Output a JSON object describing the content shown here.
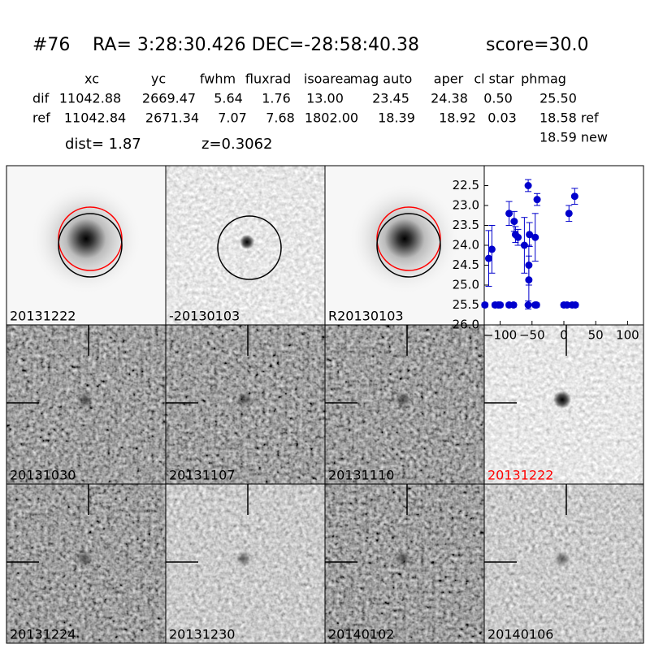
{
  "header": {
    "id": "#76",
    "coords": "RA= 3:28:30.426 DEC=-28:58:40.38",
    "score": "score=30.0"
  },
  "table": {
    "columns": [
      "xc",
      "yc",
      "fwhm",
      "fluxrad",
      "isoarea",
      "mag auto",
      "aper",
      "cl star",
      "phmag"
    ],
    "rows": [
      [
        "dif",
        "11042.88",
        "2669.47",
        "5.64",
        "1.76",
        "13.00",
        "23.45",
        "24.38",
        "0.50",
        "25.50"
      ],
      [
        "ref",
        "11042.84",
        "2671.34",
        "7.07",
        "7.68",
        "1802.00",
        "18.39",
        "18.92",
        "0.03",
        "18.58 ref"
      ]
    ],
    "new_phmag": "18.59 new",
    "dist": "dist=  1.87",
    "z": "z=0.3062"
  },
  "panels": [
    {
      "label": "20131222",
      "label_color": "#000000"
    },
    {
      "label": "-20130103",
      "label_color": "#000000"
    },
    {
      "label": "R20130103",
      "label_color": "#000000"
    },
    {
      "label": "20131030",
      "label_color": "#000000"
    },
    {
      "label": "20131107",
      "label_color": "#000000"
    },
    {
      "label": "20131110",
      "label_color": "#000000"
    },
    {
      "label": "20131222",
      "label_color": "#ff0000"
    },
    {
      "label": "20131224",
      "label_color": "#000000"
    },
    {
      "label": "20131230",
      "label_color": "#000000"
    },
    {
      "label": "20140102",
      "label_color": "#000000"
    },
    {
      "label": "20140106",
      "label_color": "#000000"
    }
  ],
  "chart_data": {
    "type": "scatter",
    "xlim": [
      -125,
      125
    ],
    "ylim": [
      26.0,
      22.0
    ],
    "xticks": [
      {
        "value": -100,
        "label": "−100"
      },
      {
        "value": -50,
        "label": "−50"
      },
      0,
      50,
      100
    ],
    "yticks": [
      22.5,
      {
        "value": 23.0,
        "label": "23.0"
      },
      23.5,
      {
        "value": 24.0,
        "label": "24.0"
      },
      24.5,
      {
        "value": 25.0,
        "label": "25.0"
      },
      25.5,
      {
        "value": 26.0,
        "label": "26.0"
      }
    ],
    "series": [
      {
        "color": "#0000cc",
        "x": [
          -118,
          -113,
          -124,
          -108,
          -103,
          -100,
          -86,
          -79,
          -86,
          -78,
          -76,
          -72,
          -62,
          -56,
          -55,
          -55,
          -54,
          -45,
          -42,
          -45,
          -43,
          -56,
          8,
          17,
          0,
          5,
          13,
          18
        ],
        "values": [
          24.33,
          24.1,
          25.5,
          25.5,
          25.5,
          25.5,
          25.5,
          25.5,
          23.2,
          23.4,
          23.73,
          23.8,
          24.0,
          22.5,
          24.5,
          24.87,
          23.73,
          23.8,
          22.85,
          25.5,
          25.5,
          25.5,
          23.2,
          22.77,
          25.5,
          25.5,
          25.5,
          25.5
        ],
        "errors": [
          0.7,
          0.6,
          0.05,
          0.05,
          0.05,
          0.05,
          0.05,
          0.05,
          0.3,
          0.25,
          0.2,
          0.2,
          0.7,
          0.15,
          0.5,
          0.6,
          0.3,
          0.6,
          0.15,
          0.05,
          0.05,
          0.1,
          0.2,
          0.2,
          0.05,
          0.05,
          0.05,
          0.05
        ]
      }
    ]
  }
}
